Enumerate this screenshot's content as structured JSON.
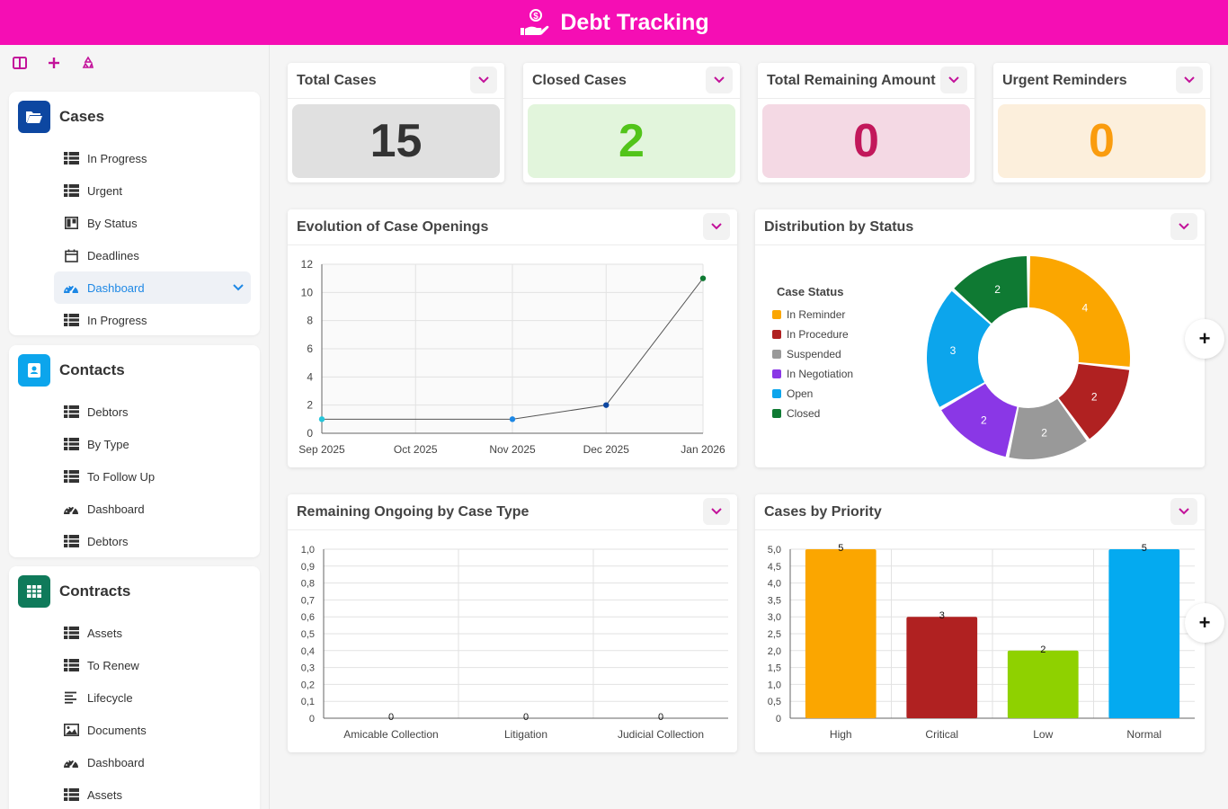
{
  "header": {
    "title": "Debt Tracking",
    "icon": "hand-coin-icon"
  },
  "toolbar": {
    "icons": [
      "panel-icon",
      "add-icon",
      "refresh-icon"
    ]
  },
  "sidebar": {
    "cases": {
      "title": "Cases",
      "items": [
        {
          "label": "In Progress",
          "icon": "table-icon"
        },
        {
          "label": "Urgent",
          "icon": "table-icon"
        },
        {
          "label": "By Status",
          "icon": "kanban-icon"
        },
        {
          "label": "Deadlines",
          "icon": "calendar-icon"
        },
        {
          "label": "Dashboard",
          "icon": "dashboard-icon",
          "active": true
        },
        {
          "label": "In Progress",
          "icon": "table-icon"
        }
      ]
    },
    "contacts": {
      "title": "Contacts",
      "items": [
        {
          "label": "Debtors",
          "icon": "table-icon"
        },
        {
          "label": "By Type",
          "icon": "table-icon"
        },
        {
          "label": "To Follow Up",
          "icon": "table-icon"
        },
        {
          "label": "Dashboard",
          "icon": "dashboard-icon"
        },
        {
          "label": "Debtors",
          "icon": "table-icon"
        }
      ]
    },
    "contracts": {
      "title": "Contracts",
      "items": [
        {
          "label": "Assets",
          "icon": "table-icon"
        },
        {
          "label": "To Renew",
          "icon": "table-icon"
        },
        {
          "label": "Lifecycle",
          "icon": "list-icon"
        },
        {
          "label": "Documents",
          "icon": "gallery-icon"
        },
        {
          "label": "Dashboard",
          "icon": "dashboard-icon"
        },
        {
          "label": "Assets",
          "icon": "table-icon"
        }
      ]
    }
  },
  "kpis": [
    {
      "title": "Total Cases",
      "value": "15",
      "bg": "#e0e0e0",
      "color": "#333333"
    },
    {
      "title": "Closed Cases",
      "value": "2",
      "bg": "#e2f5dc",
      "color": "#52c41a"
    },
    {
      "title": "Total Remaining Amount",
      "value": "0",
      "bg": "#f4d9e4",
      "color": "#c2185b"
    },
    {
      "title": "Urgent Reminders",
      "value": "0",
      "bg": "#fcefdc",
      "color": "#fa9c0e"
    }
  ],
  "chart_data": [
    {
      "type": "line",
      "title": "Evolution of Case Openings",
      "categories": [
        "Sep 2025",
        "Oct 2025",
        "Nov 2025",
        "Dec 2025",
        "Jan 2026"
      ],
      "points": [
        {
          "x": "2025-09-01",
          "y": 1
        },
        {
          "x": "2025-11-01",
          "y": 1
        },
        {
          "x": "2025-12-01",
          "y": 2
        },
        {
          "x": "2026-01-01",
          "y": 11
        }
      ],
      "ylim": [
        0,
        12
      ],
      "yticks": [
        "0",
        "2",
        "4",
        "6",
        "8",
        "10",
        "12"
      ],
      "grid": true
    },
    {
      "type": "pie",
      "title": "Distribution by Status",
      "legend_title": "Case Status",
      "legend_position": "left",
      "slices": [
        {
          "label": "In Reminder",
          "value": 4,
          "color": "#fba600"
        },
        {
          "label": "In Procedure",
          "value": 2,
          "color": "#b02121"
        },
        {
          "label": "Suspended",
          "value": 2,
          "color": "#999999"
        },
        {
          "label": "In Negotiation",
          "value": 2,
          "color": "#8a37e6"
        },
        {
          "label": "Open",
          "value": 3,
          "color": "#0ca5ec"
        },
        {
          "label": "Closed",
          "value": 2,
          "color": "#0f7a33"
        }
      ]
    },
    {
      "type": "bar",
      "title": "Remaining Ongoing by Case Type",
      "categories": [
        "Amicable Collection",
        "Litigation",
        "Judicial Collection"
      ],
      "values": [
        0,
        0,
        0
      ],
      "value_labels": [
        "0",
        "0",
        "0"
      ],
      "ylim": [
        0,
        1
      ],
      "yticks": [
        "0",
        "0,1",
        "0,2",
        "0,3",
        "0,4",
        "0,5",
        "0,6",
        "0,7",
        "0,8",
        "0,9",
        "1,0"
      ],
      "grid": true
    },
    {
      "type": "bar",
      "title": "Cases by Priority",
      "categories": [
        "High",
        "Critical",
        "Low",
        "Normal"
      ],
      "values": [
        5,
        3,
        2,
        5
      ],
      "value_labels": [
        "5",
        "3",
        "2",
        "5"
      ],
      "colors": [
        "#fba600",
        "#b02121",
        "#8fd100",
        "#04aaf0"
      ],
      "ylim": [
        0,
        5
      ],
      "yticks": [
        "0",
        "0,5",
        "1,0",
        "1,5",
        "2,0",
        "2,5",
        "3,0",
        "3,5",
        "4,0",
        "4,5",
        "5,0"
      ],
      "grid": true
    }
  ],
  "colors": {
    "accent": "#f50eb4",
    "menu_chevron": "#c3129a",
    "active_item": "#1e88e5"
  }
}
